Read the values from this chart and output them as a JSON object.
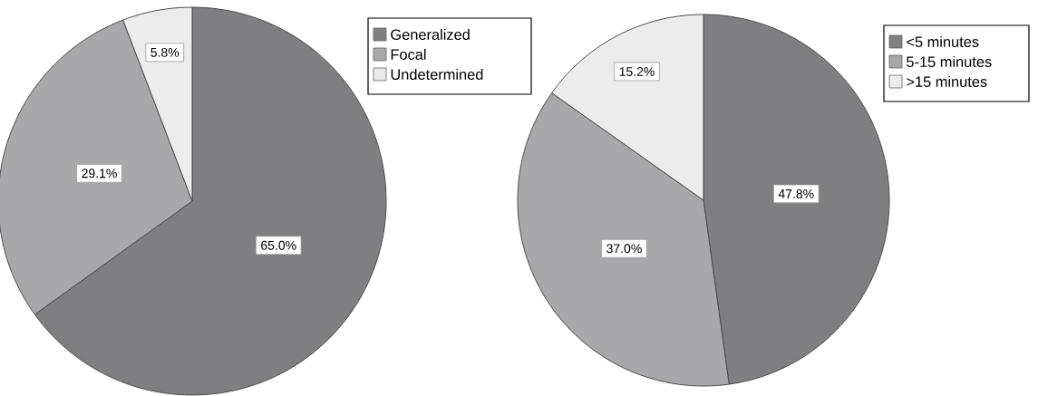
{
  "chart_data": [
    {
      "type": "pie",
      "categories": [
        "Generalized",
        "Focal",
        "Undetermined"
      ],
      "values": [
        65.0,
        29.1,
        5.8
      ],
      "value_labels": [
        "65.0%",
        "29.1%",
        "5.8%"
      ],
      "colors": [
        "#7f7f82",
        "#a8a8aa",
        "#ececec"
      ],
      "legend": "top right"
    },
    {
      "type": "pie",
      "categories": [
        "<5 minutes",
        "5-15 minutes",
        ">15 minutes"
      ],
      "values": [
        47.8,
        37.0,
        15.2
      ],
      "value_labels": [
        "47.8%",
        "37.0%",
        "15.2%"
      ],
      "colors": [
        "#7f7f82",
        "#a8a8aa",
        "#ececec"
      ],
      "legend": "top right"
    }
  ]
}
